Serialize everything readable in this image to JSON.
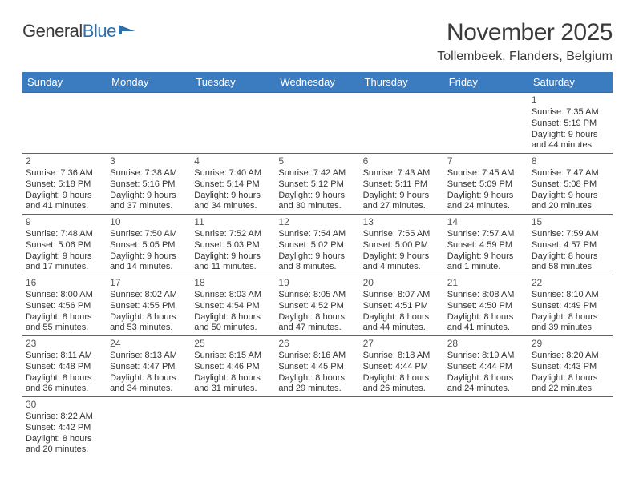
{
  "logo": {
    "textDark": "General",
    "textBlue": "Blue"
  },
  "title": "November 2025",
  "location": "Tollembeek, Flanders, Belgium",
  "colors": {
    "headerBg": "#3b7bbf",
    "headerText": "#ffffff",
    "cellBorder": "#2f6fa8",
    "bodyText": "#333333",
    "logoDark": "#3a3a3a",
    "logoBlue": "#2f6fa8"
  },
  "days": [
    "Sunday",
    "Monday",
    "Tuesday",
    "Wednesday",
    "Thursday",
    "Friday",
    "Saturday"
  ],
  "weeks": [
    [
      null,
      null,
      null,
      null,
      null,
      null,
      {
        "n": "1",
        "sunrise": "Sunrise: 7:35 AM",
        "sunset": "Sunset: 5:19 PM",
        "d1": "Daylight: 9 hours",
        "d2": "and 44 minutes."
      }
    ],
    [
      {
        "n": "2",
        "sunrise": "Sunrise: 7:36 AM",
        "sunset": "Sunset: 5:18 PM",
        "d1": "Daylight: 9 hours",
        "d2": "and 41 minutes."
      },
      {
        "n": "3",
        "sunrise": "Sunrise: 7:38 AM",
        "sunset": "Sunset: 5:16 PM",
        "d1": "Daylight: 9 hours",
        "d2": "and 37 minutes."
      },
      {
        "n": "4",
        "sunrise": "Sunrise: 7:40 AM",
        "sunset": "Sunset: 5:14 PM",
        "d1": "Daylight: 9 hours",
        "d2": "and 34 minutes."
      },
      {
        "n": "5",
        "sunrise": "Sunrise: 7:42 AM",
        "sunset": "Sunset: 5:12 PM",
        "d1": "Daylight: 9 hours",
        "d2": "and 30 minutes."
      },
      {
        "n": "6",
        "sunrise": "Sunrise: 7:43 AM",
        "sunset": "Sunset: 5:11 PM",
        "d1": "Daylight: 9 hours",
        "d2": "and 27 minutes."
      },
      {
        "n": "7",
        "sunrise": "Sunrise: 7:45 AM",
        "sunset": "Sunset: 5:09 PM",
        "d1": "Daylight: 9 hours",
        "d2": "and 24 minutes."
      },
      {
        "n": "8",
        "sunrise": "Sunrise: 7:47 AM",
        "sunset": "Sunset: 5:08 PM",
        "d1": "Daylight: 9 hours",
        "d2": "and 20 minutes."
      }
    ],
    [
      {
        "n": "9",
        "sunrise": "Sunrise: 7:48 AM",
        "sunset": "Sunset: 5:06 PM",
        "d1": "Daylight: 9 hours",
        "d2": "and 17 minutes."
      },
      {
        "n": "10",
        "sunrise": "Sunrise: 7:50 AM",
        "sunset": "Sunset: 5:05 PM",
        "d1": "Daylight: 9 hours",
        "d2": "and 14 minutes."
      },
      {
        "n": "11",
        "sunrise": "Sunrise: 7:52 AM",
        "sunset": "Sunset: 5:03 PM",
        "d1": "Daylight: 9 hours",
        "d2": "and 11 minutes."
      },
      {
        "n": "12",
        "sunrise": "Sunrise: 7:54 AM",
        "sunset": "Sunset: 5:02 PM",
        "d1": "Daylight: 9 hours",
        "d2": "and 8 minutes."
      },
      {
        "n": "13",
        "sunrise": "Sunrise: 7:55 AM",
        "sunset": "Sunset: 5:00 PM",
        "d1": "Daylight: 9 hours",
        "d2": "and 4 minutes."
      },
      {
        "n": "14",
        "sunrise": "Sunrise: 7:57 AM",
        "sunset": "Sunset: 4:59 PM",
        "d1": "Daylight: 9 hours",
        "d2": "and 1 minute."
      },
      {
        "n": "15",
        "sunrise": "Sunrise: 7:59 AM",
        "sunset": "Sunset: 4:57 PM",
        "d1": "Daylight: 8 hours",
        "d2": "and 58 minutes."
      }
    ],
    [
      {
        "n": "16",
        "sunrise": "Sunrise: 8:00 AM",
        "sunset": "Sunset: 4:56 PM",
        "d1": "Daylight: 8 hours",
        "d2": "and 55 minutes."
      },
      {
        "n": "17",
        "sunrise": "Sunrise: 8:02 AM",
        "sunset": "Sunset: 4:55 PM",
        "d1": "Daylight: 8 hours",
        "d2": "and 53 minutes."
      },
      {
        "n": "18",
        "sunrise": "Sunrise: 8:03 AM",
        "sunset": "Sunset: 4:54 PM",
        "d1": "Daylight: 8 hours",
        "d2": "and 50 minutes."
      },
      {
        "n": "19",
        "sunrise": "Sunrise: 8:05 AM",
        "sunset": "Sunset: 4:52 PM",
        "d1": "Daylight: 8 hours",
        "d2": "and 47 minutes."
      },
      {
        "n": "20",
        "sunrise": "Sunrise: 8:07 AM",
        "sunset": "Sunset: 4:51 PM",
        "d1": "Daylight: 8 hours",
        "d2": "and 44 minutes."
      },
      {
        "n": "21",
        "sunrise": "Sunrise: 8:08 AM",
        "sunset": "Sunset: 4:50 PM",
        "d1": "Daylight: 8 hours",
        "d2": "and 41 minutes."
      },
      {
        "n": "22",
        "sunrise": "Sunrise: 8:10 AM",
        "sunset": "Sunset: 4:49 PM",
        "d1": "Daylight: 8 hours",
        "d2": "and 39 minutes."
      }
    ],
    [
      {
        "n": "23",
        "sunrise": "Sunrise: 8:11 AM",
        "sunset": "Sunset: 4:48 PM",
        "d1": "Daylight: 8 hours",
        "d2": "and 36 minutes."
      },
      {
        "n": "24",
        "sunrise": "Sunrise: 8:13 AM",
        "sunset": "Sunset: 4:47 PM",
        "d1": "Daylight: 8 hours",
        "d2": "and 34 minutes."
      },
      {
        "n": "25",
        "sunrise": "Sunrise: 8:15 AM",
        "sunset": "Sunset: 4:46 PM",
        "d1": "Daylight: 8 hours",
        "d2": "and 31 minutes."
      },
      {
        "n": "26",
        "sunrise": "Sunrise: 8:16 AM",
        "sunset": "Sunset: 4:45 PM",
        "d1": "Daylight: 8 hours",
        "d2": "and 29 minutes."
      },
      {
        "n": "27",
        "sunrise": "Sunrise: 8:18 AM",
        "sunset": "Sunset: 4:44 PM",
        "d1": "Daylight: 8 hours",
        "d2": "and 26 minutes."
      },
      {
        "n": "28",
        "sunrise": "Sunrise: 8:19 AM",
        "sunset": "Sunset: 4:44 PM",
        "d1": "Daylight: 8 hours",
        "d2": "and 24 minutes."
      },
      {
        "n": "29",
        "sunrise": "Sunrise: 8:20 AM",
        "sunset": "Sunset: 4:43 PM",
        "d1": "Daylight: 8 hours",
        "d2": "and 22 minutes."
      }
    ],
    [
      {
        "n": "30",
        "sunrise": "Sunrise: 8:22 AM",
        "sunset": "Sunset: 4:42 PM",
        "d1": "Daylight: 8 hours",
        "d2": "and 20 minutes."
      },
      null,
      null,
      null,
      null,
      null,
      null
    ]
  ]
}
